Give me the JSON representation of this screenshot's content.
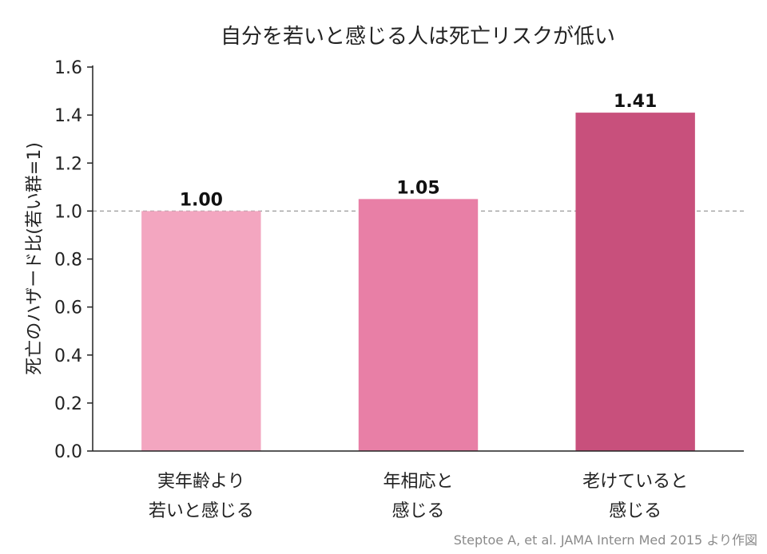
{
  "chart_data": {
    "type": "bar",
    "title": "自分を若いと感じる人は死亡リスクが低い",
    "ylabel": "死亡のハザード比(若い群=1)",
    "xlabel": "",
    "ylim": [
      0,
      1.6
    ],
    "yticks": [
      "0.0",
      "0.2",
      "0.4",
      "0.6",
      "0.8",
      "1.0",
      "1.2",
      "1.4",
      "1.6"
    ],
    "reference_line": {
      "value": 1.0,
      "style": "dashed",
      "color": "#999999"
    },
    "grid": false,
    "categories": [
      [
        "実年齢より",
        "若いと感じる"
      ],
      [
        "年相応と",
        "感じる"
      ],
      [
        "老けていると",
        "感じる"
      ]
    ],
    "values": [
      1.0,
      1.05,
      1.41
    ],
    "value_labels": [
      "1.00",
      "1.05",
      "1.41"
    ],
    "bar_colors": [
      "#f3a6c0",
      "#e87fa6",
      "#c8507c"
    ],
    "source": "Steptoe A, et al. JAMA Intern Med 2015 より作図"
  }
}
